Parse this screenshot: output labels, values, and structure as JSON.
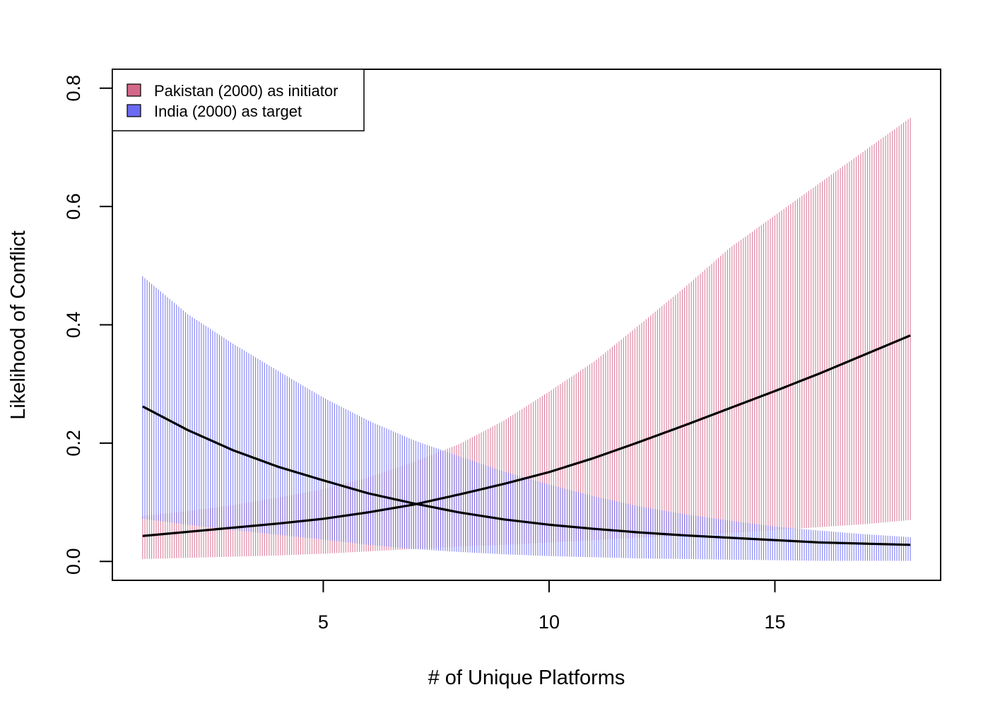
{
  "chart_data": {
    "type": "line",
    "title": "",
    "xlabel": "# of Unique Platforms",
    "ylabel": "Likelihood of Conflict",
    "xlim": [
      0.33,
      18.67
    ],
    "ylim": [
      -0.032,
      0.832
    ],
    "x_ticks": [
      5,
      10,
      15
    ],
    "y_ticks": [
      0.0,
      0.2,
      0.4,
      0.6,
      0.8
    ],
    "x_tick_labels": [
      "5",
      "10",
      "15"
    ],
    "y_tick_labels": [
      "0.0",
      "0.2",
      "0.4",
      "0.6",
      "0.8"
    ],
    "legend_position": "top-left",
    "x_step": 0.05,
    "series": [
      {
        "name": "Pakistan (2000) as initiator",
        "color": "#D4688A",
        "x": [
          1,
          2,
          3,
          4,
          5,
          6,
          7,
          8,
          9,
          10,
          11,
          12,
          13,
          14,
          15,
          16,
          17,
          18
        ],
        "fit": [
          0.043,
          0.05,
          0.057,
          0.064,
          0.072,
          0.083,
          0.096,
          0.113,
          0.131,
          0.151,
          0.175,
          0.202,
          0.23,
          0.259,
          0.288,
          0.318,
          0.35,
          0.382
        ],
        "lower": [
          0.004,
          0.006,
          0.008,
          0.01,
          0.013,
          0.017,
          0.021,
          0.025,
          0.028,
          0.032,
          0.036,
          0.04,
          0.044,
          0.048,
          0.053,
          0.058,
          0.063,
          0.07
        ],
        "upper": [
          0.077,
          0.085,
          0.095,
          0.108,
          0.122,
          0.142,
          0.168,
          0.198,
          0.238,
          0.287,
          0.338,
          0.4,
          0.463,
          0.53,
          0.585,
          0.64,
          0.695,
          0.75
        ]
      },
      {
        "name": "India (2000) as target",
        "color": "#6A6AF2",
        "x": [
          1,
          2,
          3,
          4,
          5,
          6,
          7,
          8,
          9,
          10,
          11,
          12,
          13,
          14,
          15,
          16,
          17,
          18
        ],
        "fit": [
          0.262,
          0.222,
          0.188,
          0.16,
          0.137,
          0.115,
          0.098,
          0.083,
          0.071,
          0.062,
          0.055,
          0.049,
          0.044,
          0.04,
          0.036,
          0.032,
          0.03,
          0.028
        ],
        "lower": [
          0.072,
          0.062,
          0.053,
          0.045,
          0.037,
          0.028,
          0.021,
          0.016,
          0.012,
          0.009,
          0.007,
          0.005,
          0.004,
          0.003,
          0.002,
          0.001,
          0.001,
          0.001
        ],
        "upper": [
          0.482,
          0.418,
          0.368,
          0.322,
          0.277,
          0.238,
          0.205,
          0.178,
          0.152,
          0.13,
          0.11,
          0.093,
          0.08,
          0.069,
          0.059,
          0.052,
          0.046,
          0.041
        ]
      }
    ]
  }
}
